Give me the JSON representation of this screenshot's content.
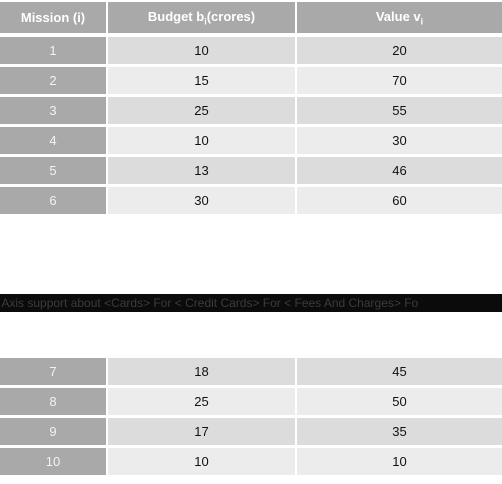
{
  "table": {
    "headers": {
      "mission": "Mission (i)",
      "budget_main": "Budget b",
      "budget_sub": "i",
      "budget_unit": "(crores)",
      "value_main": "Value v",
      "value_sub": "i"
    },
    "rows_top": [
      {
        "mission": "1",
        "budget": "10",
        "value": "20"
      },
      {
        "mission": "2",
        "budget": "15",
        "value": "70"
      },
      {
        "mission": "3",
        "budget": "25",
        "value": "55"
      },
      {
        "mission": "4",
        "budget": "10",
        "value": "30"
      },
      {
        "mission": "5",
        "budget": "13",
        "value": "46"
      },
      {
        "mission": "6",
        "budget": "30",
        "value": "60"
      }
    ],
    "rows_bottom": [
      {
        "mission": "7",
        "budget": "18",
        "value": "45"
      },
      {
        "mission": "8",
        "budget": "25",
        "value": "50"
      },
      {
        "mission": "9",
        "budget": "17",
        "value": "35"
      },
      {
        "mission": "10",
        "budget": "10",
        "value": "10"
      }
    ]
  },
  "ticker": {
    "text": "om Axis support about <Cards> For < Credit Cards> For < Fees And Charges> Fo"
  }
}
